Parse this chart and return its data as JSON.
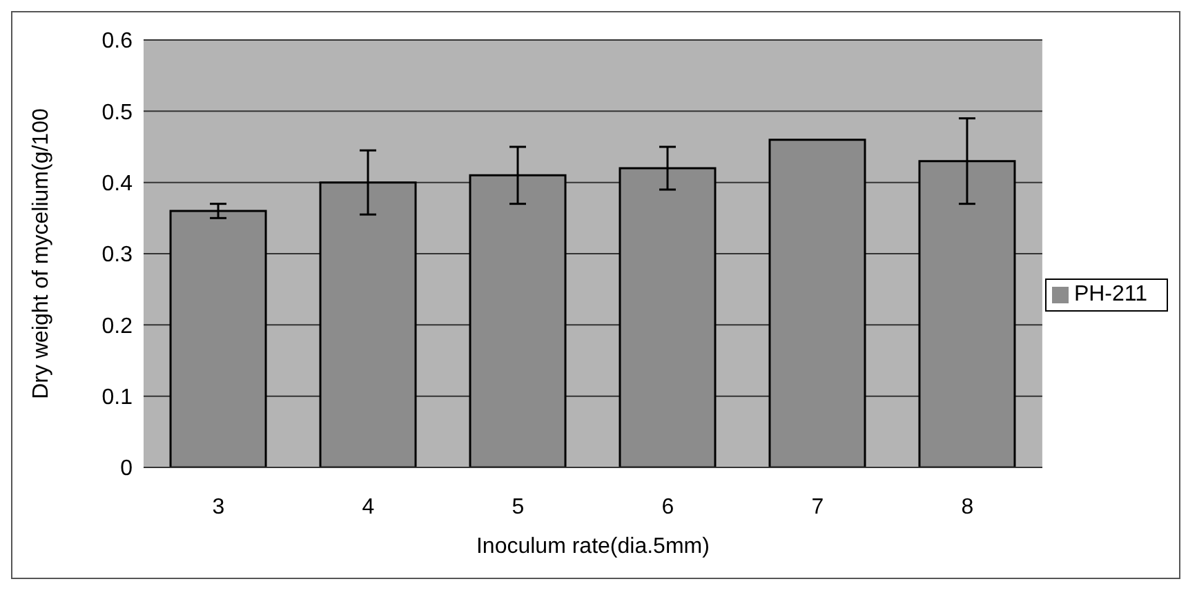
{
  "chart_data": {
    "type": "bar",
    "xlabel": "Inoculum rate(dia.5mm)",
    "ylabel": "Dry weight of mycelium(g/100",
    "categories": [
      "3",
      "4",
      "5",
      "6",
      "7",
      "8"
    ],
    "series": [
      {
        "name": "PH-211",
        "color": "#8c8c8c",
        "values": [
          0.36,
          0.4,
          0.41,
          0.42,
          0.46,
          0.43
        ],
        "errors": [
          0.01,
          0.045,
          0.04,
          0.03,
          null,
          0.06
        ]
      }
    ],
    "ylim": [
      0,
      0.6
    ],
    "yticks": [
      0,
      0.1,
      0.2,
      0.3,
      0.4,
      0.5,
      0.6
    ],
    "grid": "y",
    "legend": "right"
  }
}
